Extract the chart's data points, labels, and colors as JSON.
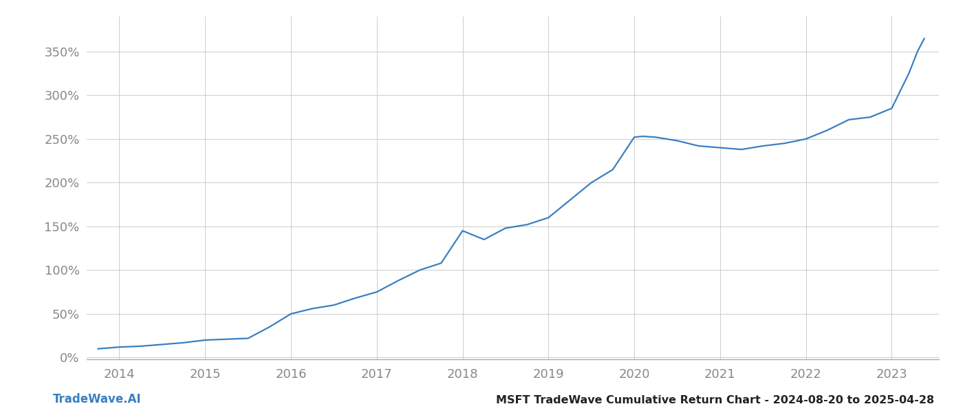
{
  "title": "MSFT TradeWave Cumulative Return Chart - 2024-08-20 to 2025-04-28",
  "watermark": "TradeWave.AI",
  "line_color": "#3a7fc1",
  "line_width": 1.6,
  "background_color": "#ffffff",
  "grid_color": "#cccccc",
  "x_years": [
    2014,
    2015,
    2016,
    2017,
    2018,
    2019,
    2020,
    2021,
    2022,
    2023
  ],
  "x_data": [
    2013.75,
    2014.0,
    2014.25,
    2014.5,
    2014.75,
    2015.0,
    2015.25,
    2015.5,
    2015.75,
    2016.0,
    2016.25,
    2016.5,
    2016.75,
    2017.0,
    2017.25,
    2017.5,
    2017.75,
    2018.0,
    2018.25,
    2018.5,
    2018.75,
    2019.0,
    2019.25,
    2019.5,
    2019.75,
    2020.0,
    2020.1,
    2020.25,
    2020.5,
    2020.75,
    2021.0,
    2021.25,
    2021.5,
    2021.75,
    2022.0,
    2022.25,
    2022.5,
    2022.75,
    2023.0,
    2023.1,
    2023.2,
    2023.3,
    2023.38
  ],
  "y_data": [
    0.1,
    0.12,
    0.13,
    0.15,
    0.17,
    0.2,
    0.21,
    0.22,
    0.35,
    0.5,
    0.56,
    0.6,
    0.68,
    0.75,
    0.88,
    1.0,
    1.08,
    1.45,
    1.35,
    1.48,
    1.52,
    1.6,
    1.8,
    2.0,
    2.15,
    2.52,
    2.53,
    2.52,
    2.48,
    2.42,
    2.4,
    2.38,
    2.42,
    2.45,
    2.5,
    2.6,
    2.72,
    2.75,
    2.85,
    3.05,
    3.25,
    3.5,
    3.65
  ],
  "ylim": [
    -0.02,
    3.9
  ],
  "yticks": [
    0.0,
    0.5,
    1.0,
    1.5,
    2.0,
    2.5,
    3.0,
    3.5
  ],
  "ytick_labels": [
    "0%",
    "50%",
    "100%",
    "150%",
    "200%",
    "250%",
    "300%",
    "350%"
  ],
  "xlim": [
    2013.62,
    2023.55
  ],
  "title_fontsize": 11.5,
  "watermark_fontsize": 12,
  "tick_fontsize": 13,
  "tick_color": "#888888",
  "spine_color": "#aaaaaa",
  "title_color": "#222222",
  "watermark_color": "#3a7fc1"
}
